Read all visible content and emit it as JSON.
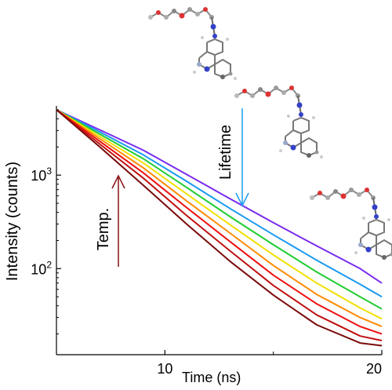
{
  "chart_data": {
    "type": "line",
    "xlabel": "Time (ns)",
    "ylabel": "Intensity (counts)",
    "xlim": [
      5,
      20
    ],
    "ylim": [
      12,
      5500
    ],
    "y_scale": "log",
    "x_ticks": [
      10,
      20
    ],
    "y_ticks": [
      {
        "value": 1000,
        "base": "10",
        "exp": "3"
      },
      {
        "value": 100,
        "base": "10",
        "exp": "2"
      }
    ],
    "grid": false,
    "series": [
      {
        "color": "#7a2cf0",
        "x": [
          5,
          7,
          9,
          11,
          13,
          15,
          17,
          19,
          20
        ],
        "y": [
          5000,
          3050,
          1850,
          1020,
          560,
          310,
          175,
          100,
          70
        ]
      },
      {
        "color": "#1a9af0",
        "x": [
          5,
          7,
          9,
          11,
          13,
          15,
          17,
          19,
          20
        ],
        "y": [
          5000,
          2900,
          1650,
          860,
          440,
          230,
          123,
          68,
          50
        ]
      },
      {
        "color": "#22cc33",
        "x": [
          5,
          7,
          9,
          11,
          13,
          15,
          17,
          19,
          20
        ],
        "y": [
          5000,
          2750,
          1500,
          740,
          360,
          180,
          92,
          50,
          37
        ]
      },
      {
        "color": "#f0e000",
        "x": [
          5,
          7,
          9,
          11,
          13,
          15,
          17,
          19,
          20
        ],
        "y": [
          5000,
          2600,
          1350,
          630,
          295,
          140,
          70,
          38,
          29
        ]
      },
      {
        "color": "#ff8a00",
        "x": [
          5,
          7,
          9,
          11,
          13,
          15,
          17,
          19,
          20
        ],
        "y": [
          5000,
          2450,
          1200,
          530,
          240,
          108,
          53,
          30,
          24
        ]
      },
      {
        "color": "#ee1010",
        "x": [
          5,
          7,
          9,
          11,
          13,
          15,
          17,
          19,
          20
        ],
        "y": [
          5000,
          2300,
          1060,
          450,
          195,
          85,
          42,
          24,
          20
        ]
      },
      {
        "color": "#c01010",
        "x": [
          5,
          7,
          9,
          11,
          13,
          15,
          17,
          19,
          20
        ],
        "y": [
          5000,
          2150,
          930,
          370,
          155,
          66,
          32,
          19,
          17
        ]
      },
      {
        "color": "#7a0a0a",
        "x": [
          5,
          7,
          9,
          11,
          13,
          15,
          17,
          19,
          20
        ],
        "y": [
          5000,
          2000,
          780,
          300,
          120,
          52,
          25,
          16,
          15
        ]
      }
    ],
    "annotations": [
      {
        "text": "Temp.",
        "color": "#8b1010",
        "arrow": "up"
      },
      {
        "text": "Lifetime",
        "color": "#1a9af0",
        "arrow": "down"
      }
    ]
  },
  "images": [
    {
      "icon": "molecule-structure-icon"
    },
    {
      "icon": "molecule-structure-icon"
    },
    {
      "icon": "molecule-structure-icon"
    }
  ]
}
